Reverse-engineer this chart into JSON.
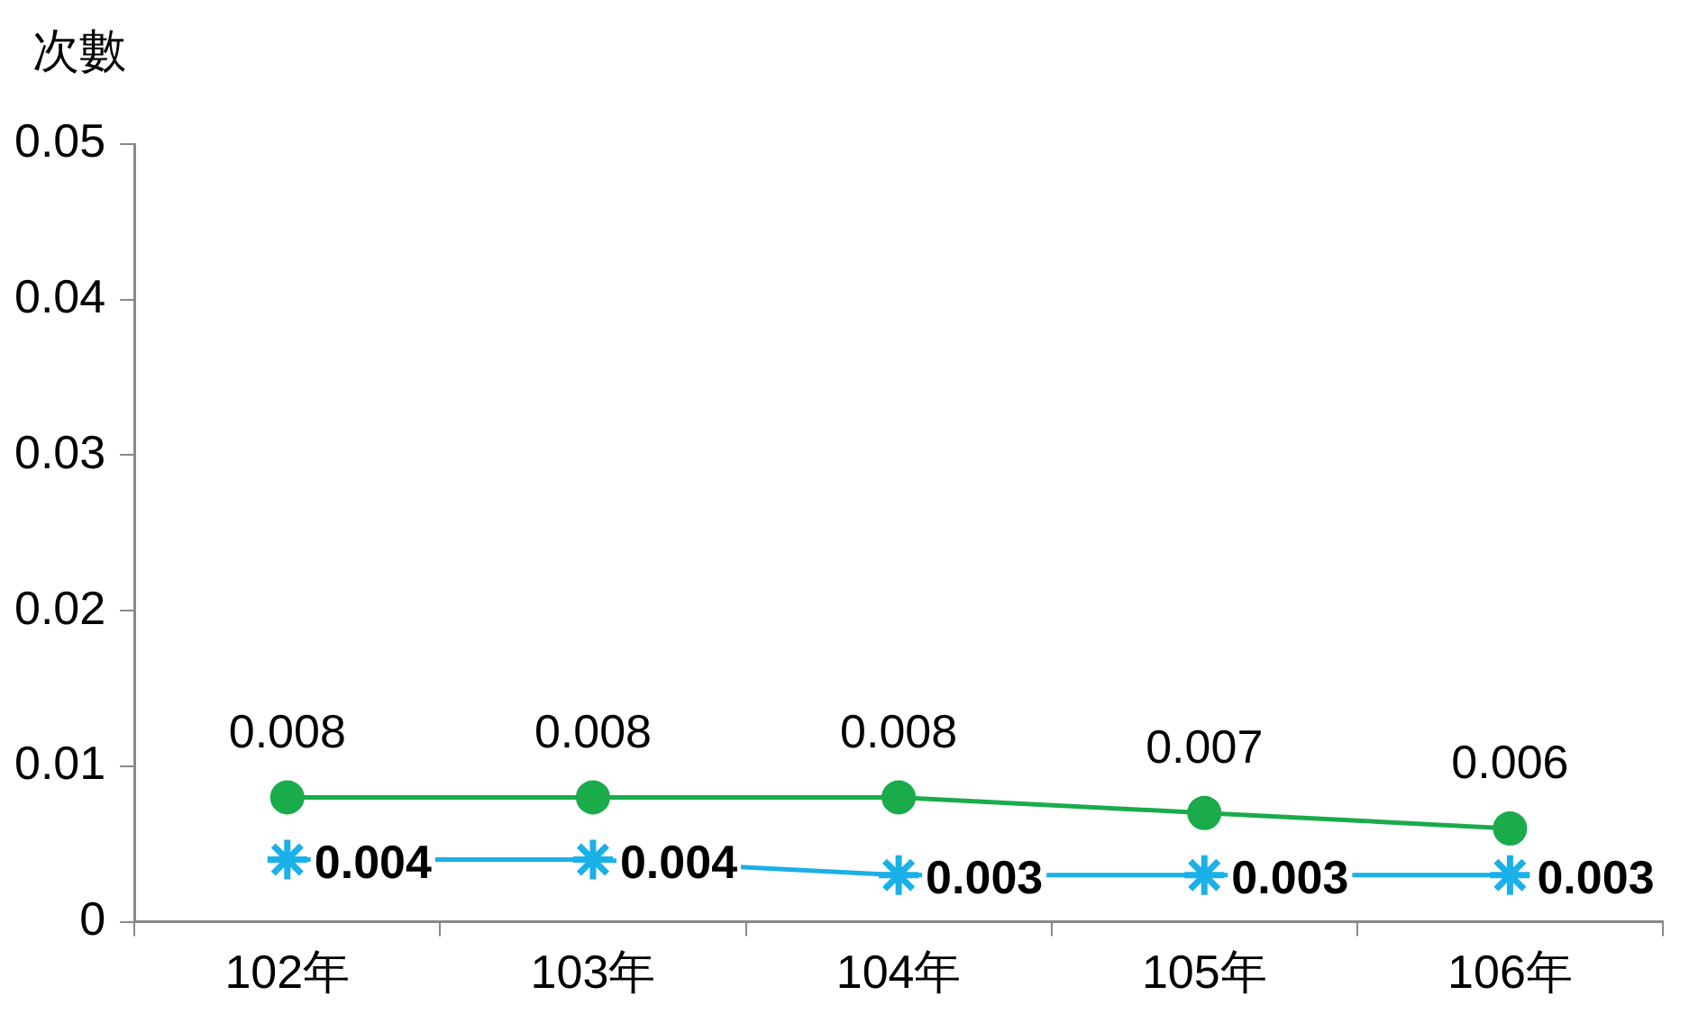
{
  "chart_data": {
    "type": "line",
    "ylabel": "次數",
    "categories": [
      "102年",
      "103年",
      "104年",
      "105年",
      "106年"
    ],
    "series": [
      {
        "color": "#1aab4b",
        "marker": "circle",
        "values": [
          0.008,
          0.008,
          0.008,
          0.007,
          0.006
        ]
      },
      {
        "color": "#1ab0e8",
        "marker": "cross",
        "values": [
          0.004,
          0.004,
          0.003,
          0.003,
          0.003
        ]
      }
    ],
    "ylim": [
      0,
      0.05
    ],
    "yticks": [
      0,
      0.01,
      0.02,
      0.03,
      0.04,
      0.05
    ],
    "grid": false,
    "legend": false,
    "data_labels": true,
    "line_style": "solid"
  }
}
